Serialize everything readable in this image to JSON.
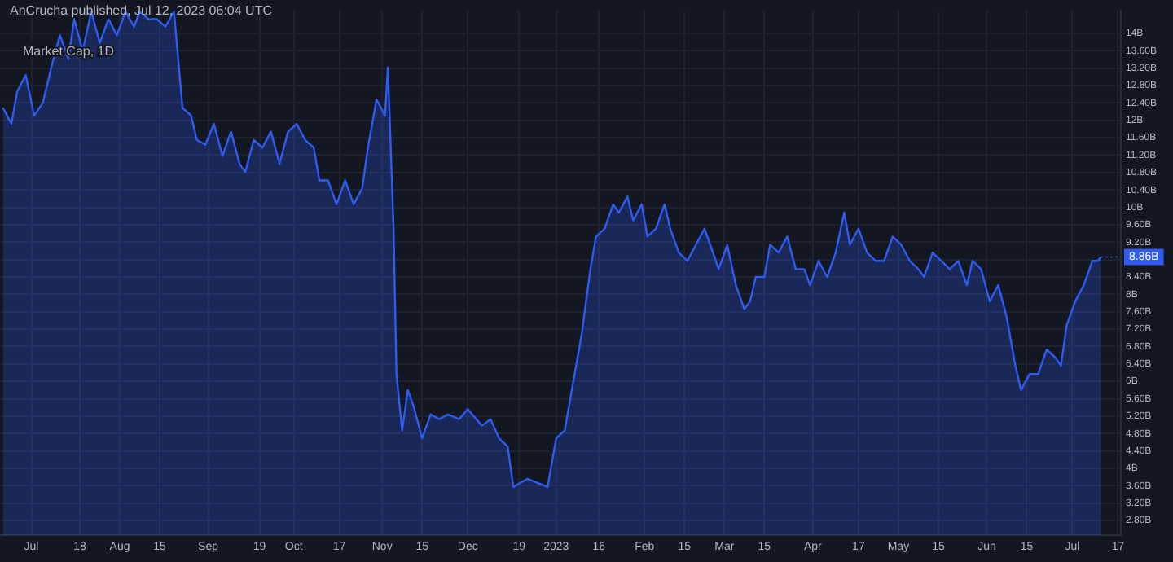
{
  "chart_data": {
    "type": "area",
    "title": "Market Cap, 1D",
    "annotations": [
      "AnCrucha published, Jul 12, 2023 06:04 UTC",
      {
        "text": "8.86B",
        "x": "2023-07-11",
        "y": 8.86
      }
    ],
    "x": [
      "2022-06-21",
      "2022-06-24",
      "2022-06-26",
      "2022-06-29",
      "2022-07-02",
      "2022-07-05",
      "2022-07-08",
      "2022-07-11",
      "2022-07-14",
      "2022-07-16",
      "2022-07-19",
      "2022-07-22",
      "2022-07-25",
      "2022-07-28",
      "2022-07-31",
      "2022-08-03",
      "2022-08-06",
      "2022-08-08",
      "2022-08-11",
      "2022-08-14",
      "2022-08-17",
      "2022-08-20",
      "2022-08-23",
      "2022-08-26",
      "2022-08-28",
      "2022-08-31",
      "2022-09-03",
      "2022-09-06",
      "2022-09-09",
      "2022-09-12",
      "2022-09-14",
      "2022-09-17",
      "2022-09-20",
      "2022-09-23",
      "2022-09-26",
      "2022-09-29",
      "2022-10-02",
      "2022-10-05",
      "2022-10-08",
      "2022-10-10",
      "2022-10-13",
      "2022-10-16",
      "2022-10-19",
      "2022-10-22",
      "2022-10-25",
      "2022-10-27",
      "2022-10-30",
      "2022-11-02",
      "2022-11-03",
      "2022-11-05",
      "2022-11-06",
      "2022-11-08",
      "2022-11-10",
      "2022-11-12",
      "2022-11-15",
      "2022-11-18",
      "2022-11-21",
      "2022-11-24",
      "2022-11-28",
      "2022-12-01",
      "2022-12-04",
      "2022-12-06",
      "2022-12-09",
      "2022-12-12",
      "2022-12-15",
      "2022-12-17",
      "2022-12-19",
      "2022-12-22",
      "2022-12-29",
      "2023-01-01",
      "2023-01-04",
      "2023-01-07",
      "2023-01-10",
      "2023-01-13",
      "2023-01-15",
      "2023-01-18",
      "2023-01-21",
      "2023-01-23",
      "2023-01-26",
      "2023-01-28",
      "2023-01-31",
      "2023-02-02",
      "2023-02-05",
      "2023-02-08",
      "2023-02-10",
      "2023-02-13",
      "2023-02-16",
      "2023-02-19",
      "2023-02-22",
      "2023-02-24",
      "2023-02-27",
      "2023-03-02",
      "2023-03-05",
      "2023-03-08",
      "2023-03-10",
      "2023-03-12",
      "2023-03-15",
      "2023-03-17",
      "2023-03-20",
      "2023-03-23",
      "2023-03-26",
      "2023-03-29",
      "2023-03-31",
      "2023-04-03",
      "2023-04-06",
      "2023-04-09",
      "2023-04-12",
      "2023-04-14",
      "2023-04-17",
      "2023-04-20",
      "2023-04-23",
      "2023-04-26",
      "2023-04-29",
      "2023-05-02",
      "2023-05-05",
      "2023-05-08",
      "2023-05-10",
      "2023-05-13",
      "2023-05-16",
      "2023-05-19",
      "2023-05-22",
      "2023-05-25",
      "2023-05-27",
      "2023-05-30",
      "2023-06-02",
      "2023-06-05",
      "2023-06-08",
      "2023-06-11",
      "2023-06-13",
      "2023-06-16",
      "2023-06-19",
      "2023-06-22",
      "2023-06-25",
      "2023-06-27",
      "2023-06-29",
      "2023-07-02",
      "2023-07-05",
      "2023-07-08",
      "2023-07-10",
      "2023-07-11"
    ],
    "series": [
      {
        "color": "#2f5bf0",
        "values": [
          12.29,
          11.92,
          12.66,
          13.04,
          12.11,
          12.4,
          13.22,
          13.96,
          13.41,
          14.33,
          13.59,
          14.5,
          13.78,
          14.33,
          13.96,
          14.5,
          14.15,
          14.5,
          14.33,
          14.33,
          14.15,
          14.5,
          12.29,
          12.11,
          11.55,
          11.44,
          11.92,
          11.18,
          11.74,
          11.0,
          10.81,
          11.55,
          11.37,
          11.74,
          11.0,
          11.74,
          11.92,
          11.55,
          11.37,
          10.62,
          10.62,
          10.07,
          10.62,
          10.07,
          10.44,
          11.37,
          12.48,
          12.11,
          13.22,
          9.51,
          6.17,
          4.87,
          5.8,
          5.43,
          4.69,
          5.24,
          5.13,
          5.24,
          5.13,
          5.36,
          5.13,
          4.98,
          5.13,
          4.69,
          4.5,
          3.57,
          3.65,
          3.76,
          3.57,
          4.69,
          4.87,
          5.99,
          7.1,
          8.58,
          9.33,
          9.51,
          10.07,
          9.88,
          10.25,
          9.7,
          10.07,
          9.33,
          9.51,
          10.07,
          9.51,
          8.96,
          8.77,
          9.14,
          9.51,
          9.14,
          8.58,
          9.14,
          8.21,
          7.66,
          7.84,
          8.4,
          8.4,
          9.14,
          8.96,
          9.33,
          8.58,
          8.58,
          8.21,
          8.77,
          8.4,
          8.96,
          9.88,
          9.14,
          9.51,
          8.96,
          8.77,
          8.77,
          9.33,
          9.14,
          8.77,
          8.58,
          8.4,
          8.96,
          8.77,
          8.58,
          8.77,
          8.21,
          8.77,
          8.58,
          7.84,
          8.21,
          7.47,
          6.36,
          5.8,
          6.17,
          6.17,
          6.73,
          6.55,
          6.36,
          7.29,
          7.84,
          8.21,
          8.77,
          8.77,
          8.86
        ]
      }
    ],
    "xlim": [
      "2022-06-20",
      "2023-07-18"
    ],
    "xticks": [
      {
        "value": "2022-07-01",
        "label": "Jul"
      },
      {
        "value": "2022-07-18",
        "label": "18"
      },
      {
        "value": "2022-08-01",
        "label": "Aug"
      },
      {
        "value": "2022-08-15",
        "label": "15"
      },
      {
        "value": "2022-09-01",
        "label": "Sep"
      },
      {
        "value": "2022-09-19",
        "label": "19"
      },
      {
        "value": "2022-10-01",
        "label": "Oct"
      },
      {
        "value": "2022-10-17",
        "label": "17"
      },
      {
        "value": "2022-11-01",
        "label": "Nov"
      },
      {
        "value": "2022-11-15",
        "label": "15"
      },
      {
        "value": "2022-12-01",
        "label": "Dec"
      },
      {
        "value": "2022-12-19",
        "label": "19"
      },
      {
        "value": "2023-01-01",
        "label": "2023"
      },
      {
        "value": "2023-01-16",
        "label": "16"
      },
      {
        "value": "2023-02-01",
        "label": "Feb"
      },
      {
        "value": "2023-02-15",
        "label": "15"
      },
      {
        "value": "2023-03-01",
        "label": "Mar"
      },
      {
        "value": "2023-03-15",
        "label": "15"
      },
      {
        "value": "2023-04-01",
        "label": "Apr"
      },
      {
        "value": "2023-04-17",
        "label": "17"
      },
      {
        "value": "2023-05-01",
        "label": "May"
      },
      {
        "value": "2023-05-15",
        "label": "15"
      },
      {
        "value": "2023-06-01",
        "label": "Jun"
      },
      {
        "value": "2023-06-15",
        "label": "15"
      },
      {
        "value": "2023-07-01",
        "label": "Jul"
      },
      {
        "value": "2023-07-17",
        "label": "17"
      }
    ],
    "ylim": [
      2.46,
      14.52
    ],
    "yticks": [
      {
        "value": 2.8,
        "label": "2.80B"
      },
      {
        "value": 3.2,
        "label": "3.20B"
      },
      {
        "value": 3.6,
        "label": "3.60B"
      },
      {
        "value": 4,
        "label": "4B"
      },
      {
        "value": 4.4,
        "label": "4.40B"
      },
      {
        "value": 4.8,
        "label": "4.80B"
      },
      {
        "value": 5.2,
        "label": "5.20B"
      },
      {
        "value": 5.6,
        "label": "5.60B"
      },
      {
        "value": 6,
        "label": "6B"
      },
      {
        "value": 6.4,
        "label": "6.40B"
      },
      {
        "value": 6.8,
        "label": "6.80B"
      },
      {
        "value": 7.2,
        "label": "7.20B"
      },
      {
        "value": 7.6,
        "label": "7.60B"
      },
      {
        "value": 8,
        "label": "8B"
      },
      {
        "value": 8.4,
        "label": "8.40B"
      },
      {
        "value": 8.8,
        "label": null
      },
      {
        "value": 9.2,
        "label": "9.20B"
      },
      {
        "value": 9.6,
        "label": "9.60B"
      },
      {
        "value": 10,
        "label": "10B"
      },
      {
        "value": 10.4,
        "label": "10.40B"
      },
      {
        "value": 10.8,
        "label": "10.80B"
      },
      {
        "value": 11.2,
        "label": "11.20B"
      },
      {
        "value": 11.6,
        "label": "11.60B"
      },
      {
        "value": 12,
        "label": "12B"
      },
      {
        "value": 12.4,
        "label": "12.40B"
      },
      {
        "value": 12.8,
        "label": "12.80B"
      },
      {
        "value": 13.2,
        "label": "13.20B"
      },
      {
        "value": 13.6,
        "label": "13.60B"
      },
      {
        "value": 14,
        "label": "14B"
      }
    ],
    "grid": true
  }
}
